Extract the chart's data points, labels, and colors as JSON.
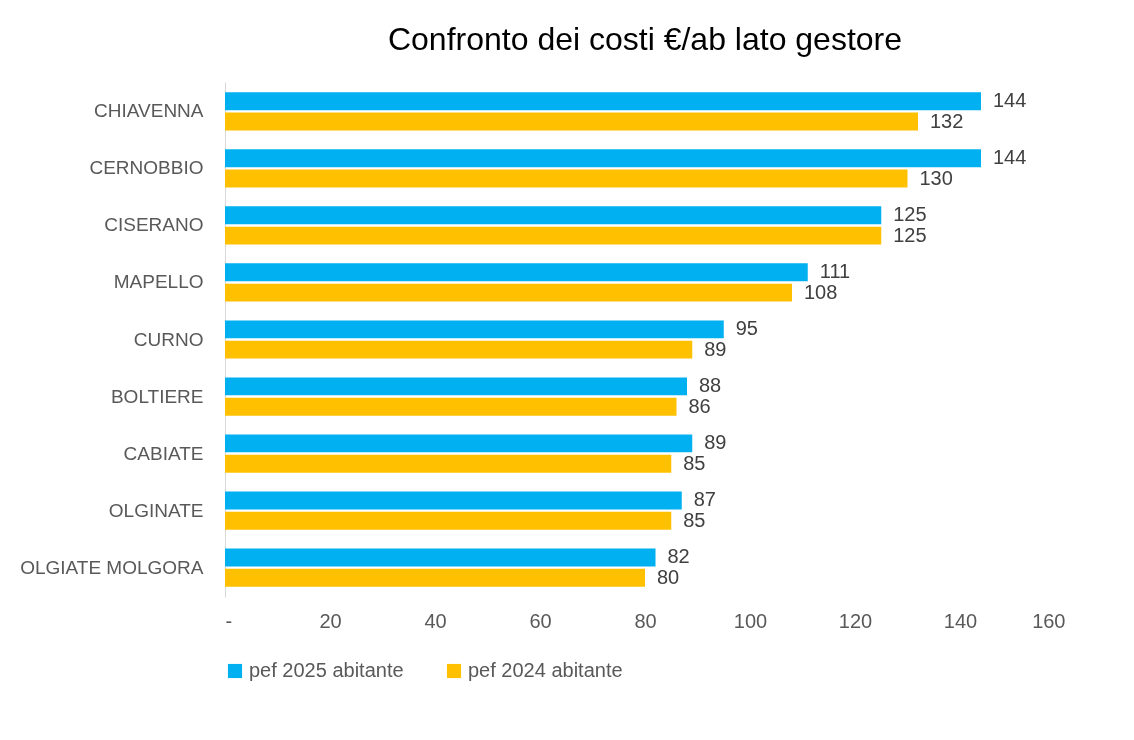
{
  "chart_data": {
    "type": "bar",
    "orientation": "horizontal",
    "title": "Confronto dei costi €/ab lato gestore",
    "categories": [
      "CHIAVENNA",
      "CERNOBBIO",
      "CISERANO",
      "MAPELLO",
      "CURNO",
      "BOLTIERE",
      "CABIATE",
      "OLGINATE",
      "OLGIATE MOLGORA"
    ],
    "series": [
      {
        "name": "pef 2025 abitante",
        "color": "#00b0f0",
        "values": [
          144,
          144,
          125,
          111,
          95,
          88,
          89,
          87,
          82
        ]
      },
      {
        "name": "pef 2024 abitante",
        "color": "#ffc000",
        "values": [
          132,
          130,
          125,
          108,
          89,
          86,
          85,
          85,
          80
        ]
      }
    ],
    "xlim": [
      0,
      160
    ],
    "xticks": [
      {
        "value": 0,
        "label": "-"
      },
      20,
      40,
      60,
      80,
      100,
      120,
      140,
      160
    ],
    "data_labels": true,
    "legend": "bottom"
  }
}
